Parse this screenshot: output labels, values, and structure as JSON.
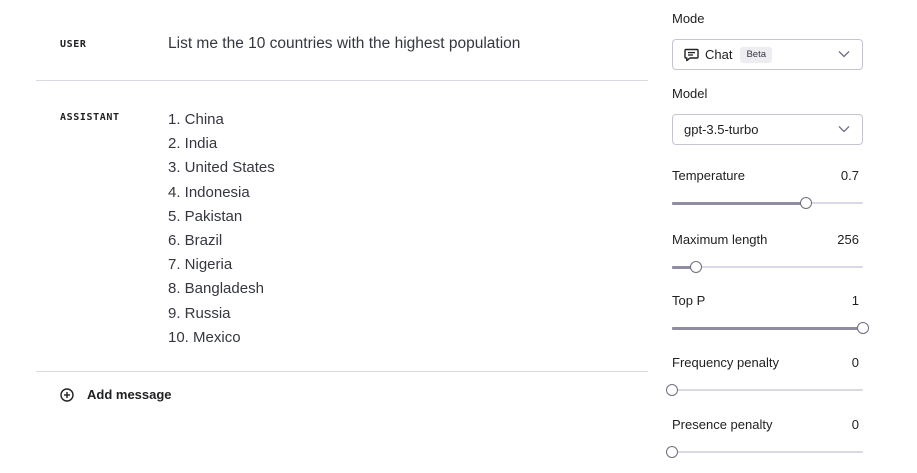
{
  "chat": {
    "messages": [
      {
        "role": "USER",
        "text": "List me the 10 countries with the highest population"
      },
      {
        "role": "ASSISTANT",
        "lines": [
          "1. China",
          "2. India",
          "3. United States",
          "4. Indonesia",
          "5. Pakistan",
          "6. Brazil",
          "7. Nigeria",
          "8. Bangladesh",
          "9. Russia",
          "10. Mexico"
        ]
      }
    ],
    "add_message_label": "Add message"
  },
  "settings": {
    "mode": {
      "label": "Mode",
      "value": "Chat",
      "badge": "Beta",
      "icon": "chat-bubble-icon"
    },
    "model": {
      "label": "Model",
      "value": "gpt-3.5-turbo"
    },
    "sliders": [
      {
        "name": "temperature",
        "label": "Temperature",
        "value": "0.7",
        "fraction": 0.7
      },
      {
        "name": "maximum-length",
        "label": "Maximum length",
        "value": "256",
        "fraction": 0.125
      },
      {
        "name": "top-p",
        "label": "Top P",
        "value": "1",
        "fraction": 1.0
      },
      {
        "name": "frequency-penalty",
        "label": "Frequency penalty",
        "value": "0",
        "fraction": 0.0
      },
      {
        "name": "presence-penalty",
        "label": "Presence penalty",
        "value": "0",
        "fraction": 0.0
      }
    ]
  }
}
